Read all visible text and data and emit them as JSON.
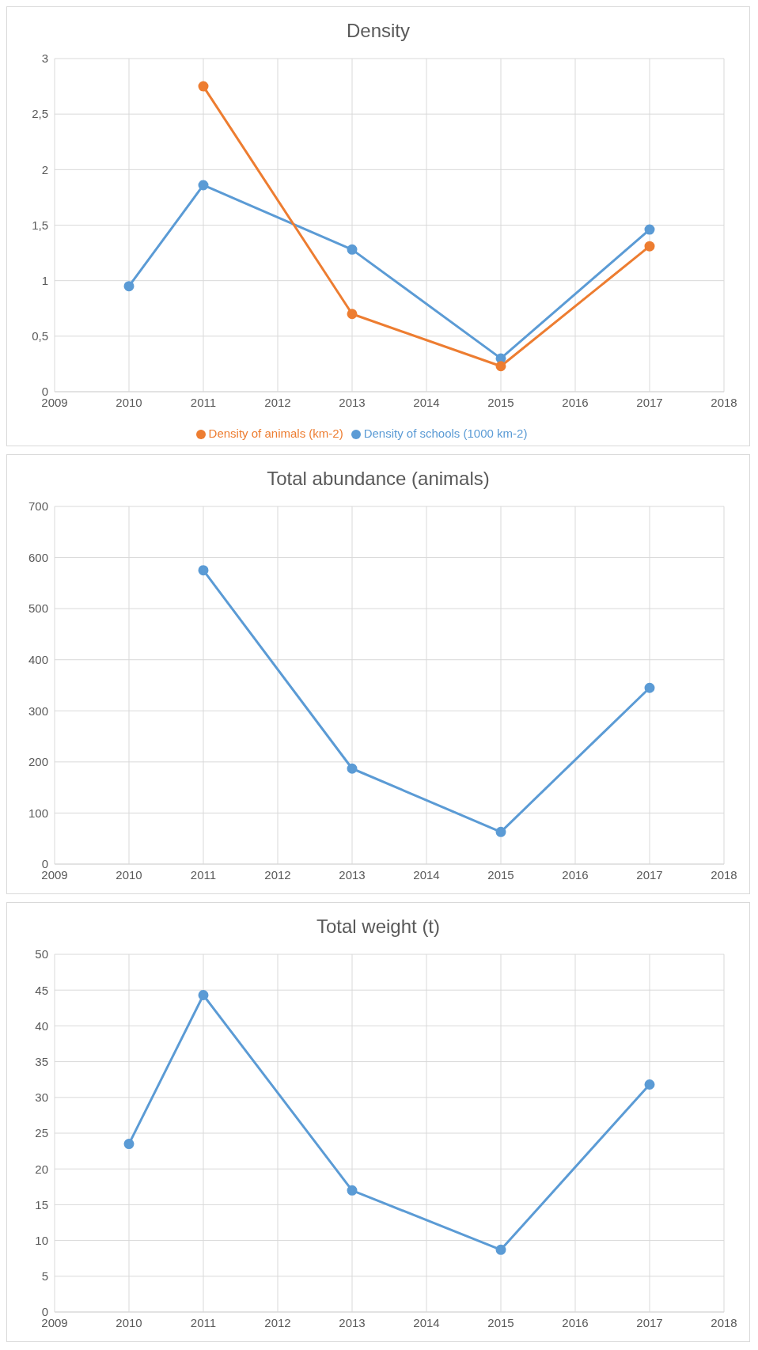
{
  "chart_data": [
    {
      "type": "line",
      "title": "Density",
      "x": [
        2010,
        2011,
        2013,
        2015,
        2017
      ],
      "series": [
        {
          "name": "Density of schools (1000 km-2)",
          "color": "#5b9bd5",
          "values": [
            0.95,
            1.86,
            1.28,
            0.3,
            1.46
          ]
        },
        {
          "name": "Density of animals (km-2)",
          "color": "#ed7d31",
          "values": [
            null,
            2.75,
            0.7,
            0.23,
            1.31
          ]
        }
      ],
      "xlim": [
        2009,
        2018
      ],
      "xticks": [
        2009,
        2010,
        2011,
        2012,
        2013,
        2014,
        2015,
        2016,
        2017,
        2018
      ],
      "ylim": [
        0,
        3
      ],
      "yticks": [
        0,
        {
          "value": 0.5,
          "label": "0,5"
        },
        1,
        {
          "value": 1.5,
          "label": "1,5"
        },
        2,
        {
          "value": 2.5,
          "label": "2,5"
        },
        3
      ],
      "grid": true,
      "legend": "bottom",
      "marker": "circle",
      "line_style": "solid"
    },
    {
      "type": "line",
      "title": "Total abundance (animals)",
      "x": [
        2011,
        2013,
        2015,
        2017
      ],
      "series": [
        {
          "color": "#5b9bd5",
          "values": [
            575,
            187,
            63,
            345
          ]
        }
      ],
      "xlim": [
        2009,
        2018
      ],
      "xticks": [
        2009,
        2010,
        2011,
        2012,
        2013,
        2014,
        2015,
        2016,
        2017,
        2018
      ],
      "ylim": [
        0,
        700
      ],
      "yticks": [
        0,
        100,
        200,
        300,
        400,
        500,
        600,
        700
      ],
      "grid": true,
      "marker": "circle",
      "line_style": "solid"
    },
    {
      "type": "line",
      "title": "Total weight (t)",
      "x": [
        2010,
        2011,
        2013,
        2015,
        2017
      ],
      "series": [
        {
          "color": "#5b9bd5",
          "values": [
            23.5,
            44.3,
            17,
            8.7,
            31.8
          ]
        }
      ],
      "xlim": [
        2009,
        2018
      ],
      "xticks": [
        2009,
        2010,
        2011,
        2012,
        2013,
        2014,
        2015,
        2016,
        2017,
        2018
      ],
      "ylim": [
        0,
        50
      ],
      "yticks": [
        0,
        5,
        10,
        15,
        20,
        25,
        30,
        35,
        40,
        45,
        50
      ],
      "grid": true,
      "marker": "circle",
      "line_style": "solid"
    }
  ]
}
